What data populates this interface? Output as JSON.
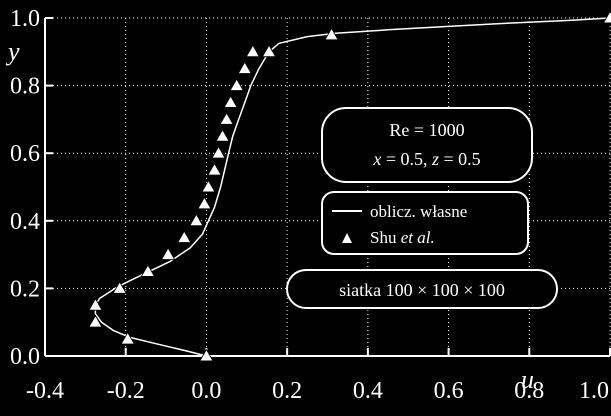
{
  "chart_data": {
    "type": "line",
    "xlabel": "u",
    "ylabel": "y",
    "xlim": [
      -0.4,
      1.0
    ],
    "ylim": [
      0.0,
      1.0
    ],
    "xticks": [
      "-0.4",
      "-0.2",
      "0.0",
      "0.2",
      "0.4",
      "0.6",
      "0.8",
      "1.0"
    ],
    "yticks": [
      "0.0",
      "0.2",
      "0.4",
      "0.6",
      "0.8",
      "1.0"
    ],
    "grid": true,
    "colors": {
      "background": "#000000",
      "foreground": "#ffffff"
    },
    "series": [
      {
        "name": "oblicz. własne",
        "style": "line",
        "x": [
          0.0,
          -0.05,
          -0.12,
          -0.19,
          -0.23,
          -0.26,
          -0.275,
          -0.275,
          -0.265,
          -0.22,
          -0.16,
          -0.09,
          -0.04,
          -0.01,
          0.005,
          0.02,
          0.035,
          0.045,
          0.055,
          0.065,
          0.08,
          0.095,
          0.11,
          0.13,
          0.155,
          0.18,
          0.25,
          0.32,
          0.45,
          0.6,
          0.75,
          0.9,
          1.0
        ],
        "y": [
          0.0,
          0.015,
          0.035,
          0.055,
          0.075,
          0.1,
          0.125,
          0.15,
          0.17,
          0.205,
          0.24,
          0.28,
          0.32,
          0.36,
          0.4,
          0.44,
          0.5,
          0.55,
          0.6,
          0.65,
          0.7,
          0.75,
          0.8,
          0.85,
          0.9,
          0.925,
          0.945,
          0.955,
          0.965,
          0.975,
          0.985,
          0.993,
          1.0
        ]
      },
      {
        "name": "Shu et al.",
        "style": "marker-triangle",
        "x": [
          0.0,
          -0.195,
          -0.275,
          -0.275,
          -0.215,
          -0.145,
          -0.095,
          -0.055,
          -0.025,
          -0.005,
          0.005,
          0.02,
          0.03,
          0.04,
          0.05,
          0.06,
          0.075,
          0.095,
          0.115,
          0.155,
          0.31,
          1.0
        ],
        "y": [
          0.0,
          0.05,
          0.1,
          0.15,
          0.2,
          0.25,
          0.3,
          0.35,
          0.4,
          0.45,
          0.5,
          0.55,
          0.6,
          0.65,
          0.7,
          0.75,
          0.8,
          0.85,
          0.9,
          0.9,
          0.95,
          1.0
        ]
      }
    ],
    "annotations": {
      "re_line": "Re = 1000",
      "pos_x_var": "x",
      "pos_x_val": " = 0.5, ",
      "pos_z_var": "z",
      "pos_z_val": " = 0.5",
      "legend_line_label": "oblicz. własne",
      "legend_marker_prefix": "Shu ",
      "legend_marker_italic": "et al.",
      "grid_label": "siatka 100 × 100 × 100"
    }
  }
}
